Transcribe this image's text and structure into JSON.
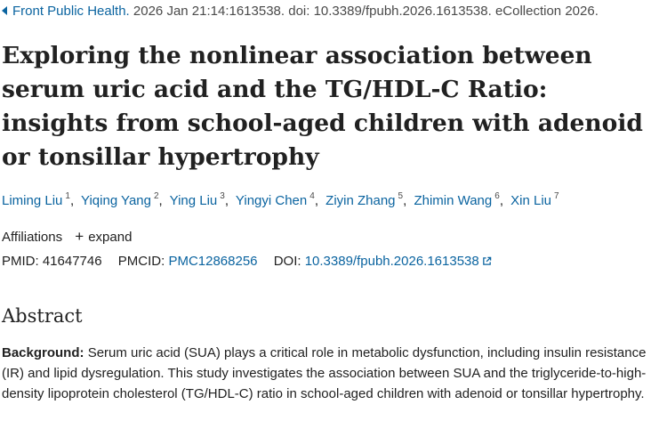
{
  "citation": {
    "journal": "Front Public Health.",
    "details": "2026 Jan 21:14:1613538. doi: 10.3389/fpubh.2026.1613538. eCollection 2026."
  },
  "title": "Exploring the nonlinear association between serum uric acid and the TG/HDL-C Ratio: insights from school-aged children with adenoid or tonsillar hypertrophy",
  "authors": [
    {
      "name": "Liming Liu",
      "sup": "1"
    },
    {
      "name": "Yiqing Yang",
      "sup": "2"
    },
    {
      "name": "Ying Liu",
      "sup": "3"
    },
    {
      "name": "Yingyi Chen",
      "sup": "4"
    },
    {
      "name": "Ziyin Zhang",
      "sup": "5"
    },
    {
      "name": "Zhimin Wang",
      "sup": "6"
    },
    {
      "name": "Xin Liu",
      "sup": "7"
    }
  ],
  "affiliations": {
    "label": "Affiliations",
    "expand_label": "expand"
  },
  "ids": {
    "pmid_label": "PMID:",
    "pmid": "41647746",
    "pmcid_label": "PMCID:",
    "pmcid": "PMC12868256",
    "doi_label": "DOI:",
    "doi": "10.3389/fpubh.2026.1613538"
  },
  "abstract": {
    "heading": "Abstract",
    "background_label": "Background:",
    "background_text": "Serum uric acid (SUA) plays a critical role in metabolic dysfunction, including insulin resistance (IR) and lipid dysregulation. This study investigates the association between SUA and the triglyceride-to-high-density lipoprotein cholesterol (TG/HDL-C) ratio in school-aged children with adenoid or tonsillar hypertrophy."
  },
  "colors": {
    "link": "#0b64a0",
    "text": "#212121"
  },
  "icons": {
    "back": "triangle-left-icon",
    "expand": "plus-icon",
    "external": "external-link-icon"
  }
}
